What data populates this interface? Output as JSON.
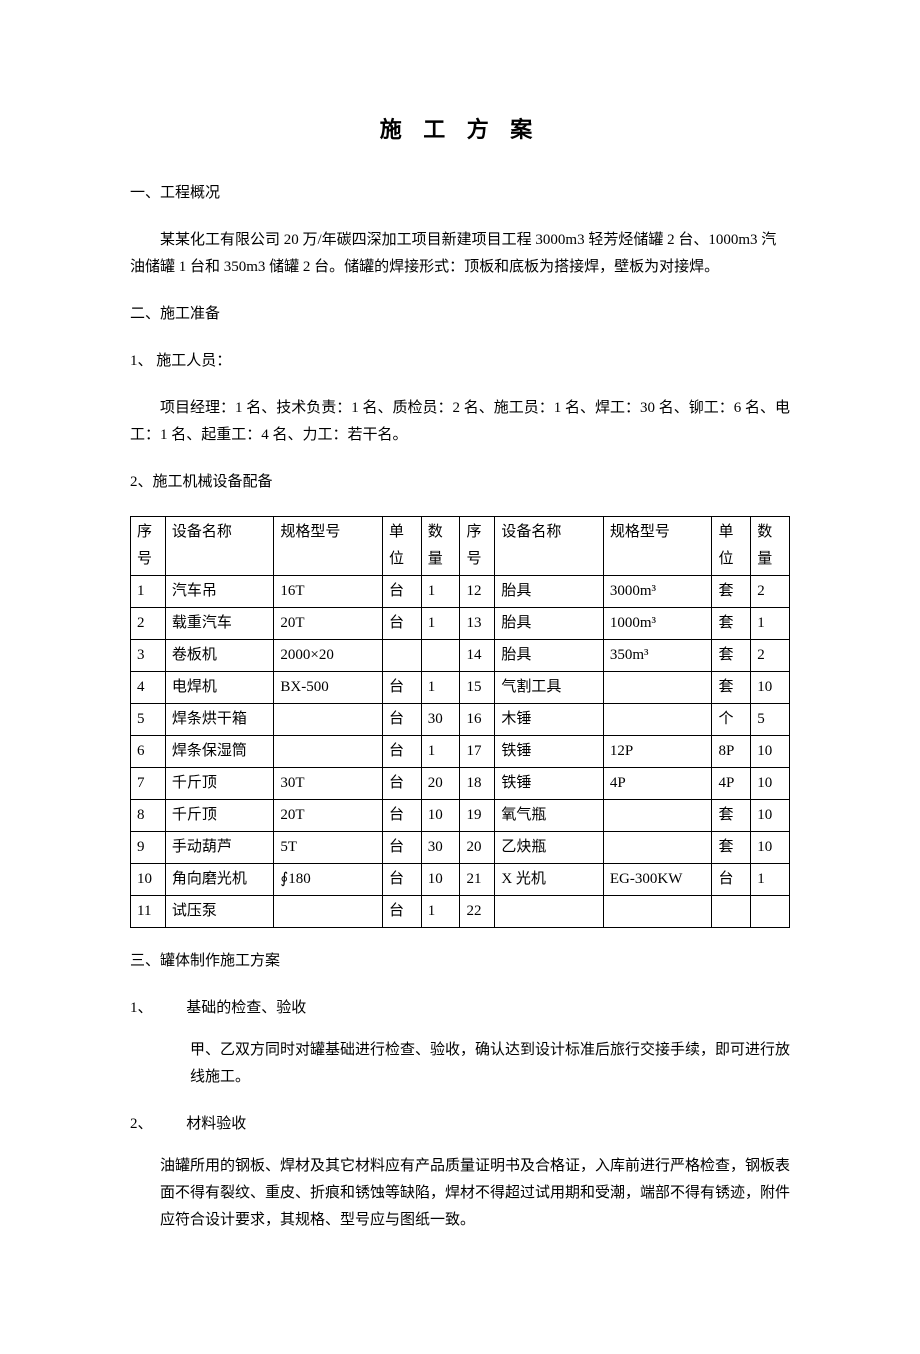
{
  "title": "施 工 方 案",
  "s1": {
    "heading": "一、工程概况",
    "p1": "某某化工有限公司 20 万/年碳四深加工项目新建项目工程 3000m3 轻芳烃储罐 2 台、1000m3 汽油储罐 1 台和 350m3 储罐 2 台。储罐的焊接形式：顶板和底板为搭接焊，壁板为对接焊。"
  },
  "s2": {
    "heading": "二、施工准备",
    "sub1": "1、 施工人员：",
    "p1": "项目经理：1 名、技术负责：1 名、质检员：2 名、施工员：1 名、焊工：30 名、铆工：6 名、电工：1 名、起重工：4 名、力工：若干名。",
    "sub2": "2、施工机械设备配备"
  },
  "table": {
    "headers": {
      "seq": "序号",
      "name": "设备名称",
      "spec": "规格型号",
      "unit": "单位",
      "qty": "数量"
    },
    "rows": [
      [
        "1",
        "汽车吊",
        "16T",
        "台",
        "1",
        "12",
        "胎具",
        "3000m³",
        "套",
        "2"
      ],
      [
        "2",
        "载重汽车",
        "20T",
        "台",
        "1",
        "13",
        "胎具",
        "1000m³",
        "套",
        "1"
      ],
      [
        "3",
        "卷板机",
        "2000×20",
        "",
        "",
        "14",
        "胎具",
        "350m³",
        "套",
        "2"
      ],
      [
        "4",
        "电焊机",
        "BX-500",
        "台",
        "1",
        "15",
        "气割工具",
        "",
        "套",
        "10"
      ],
      [
        "5",
        "焊条烘干箱",
        "",
        "台",
        "30",
        "16",
        "木锤",
        "",
        "个",
        "5"
      ],
      [
        "6",
        "焊条保湿筒",
        "",
        "台",
        "1",
        "17",
        "铁锤",
        "12P",
        "8P",
        "10"
      ],
      [
        "7",
        "千斤顶",
        "30T",
        "台",
        "20",
        "18",
        "铁锤",
        "4P",
        "4P",
        "10"
      ],
      [
        "8",
        "千斤顶",
        "20T",
        "台",
        "10",
        "19",
        "氧气瓶",
        "",
        "套",
        "10"
      ],
      [
        "9",
        "手动葫芦",
        "5T",
        "台",
        "30",
        "20",
        "乙炔瓶",
        "",
        "套",
        "10"
      ],
      [
        "10",
        "角向磨光机",
        "∮180",
        "台",
        "10",
        "21",
        "X 光机",
        "EG-300KW",
        "台",
        "1"
      ],
      [
        "11",
        "试压泵",
        "",
        "台",
        "1",
        "22",
        "",
        "",
        "",
        ""
      ]
    ]
  },
  "s3": {
    "heading": "三、罐体制作施工方案",
    "sub1_num": "1、",
    "sub1_label": "基础的检查、验收",
    "p1": "甲、乙双方同时对罐基础进行检查、验收，确认达到设计标准后旅行交接手续，即可进行放线施工。",
    "sub2_num": "2、",
    "sub2_label": "材料验收",
    "p2": "油罐所用的钢板、焊材及其它材料应有产品质量证明书及合格证，入库前进行严格检查，钢板表面不得有裂纹、重皮、折痕和锈蚀等缺陷，焊材不得超过试用期和受潮，端部不得有锈迹，附件应符合设计要求，其规格、型号应与图纸一致。"
  }
}
